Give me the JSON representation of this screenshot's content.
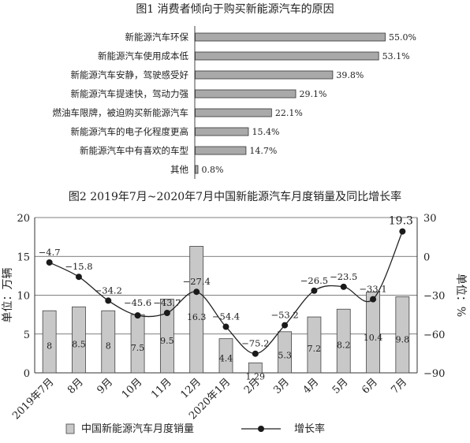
{
  "chart_data": [
    {
      "type": "bar",
      "orientation": "horizontal",
      "title": "图1 消费者倾向于购买新能源汽车的原因",
      "categories": [
        "新能源汽车环保",
        "新能源汽车使用成本低",
        "新能源汽车安静，驾驶感受好",
        "新能源汽车提速快，驾动力强",
        "燃油车限牌，被迫购买新能源汽车",
        "新能源汽车的电子化程度更高",
        "新能源汽车中有喜欢的车型",
        "其他"
      ],
      "values": [
        55.0,
        53.1,
        39.8,
        29.1,
        22.1,
        15.4,
        14.7,
        0.8
      ],
      "value_labels": [
        "55.0%",
        "53.1%",
        "39.8%",
        "29.1%",
        "22.1%",
        "15.4%",
        "14.7%",
        "0.8%"
      ],
      "xlim": [
        0,
        70
      ],
      "bar_color": "#a9a9a9"
    },
    {
      "type": "bar",
      "title": "图2 2019年7月~2020年7月中国新能源汽车月度销量及同比增长率",
      "categories": [
        "2019年7月",
        "8月",
        "9月",
        "10月",
        "11月",
        "12月",
        "2020年1月",
        "2月",
        "3月",
        "4月",
        "5月",
        "6月",
        "7月"
      ],
      "ylabel": "单位：万辆",
      "y2label": "单位：%",
      "ylim": [
        0,
        20
      ],
      "y2lim": [
        -90,
        30
      ],
      "yticks": [
        "0",
        "5",
        "10",
        "15",
        "20"
      ],
      "y2ticks": [
        "−90",
        "−60",
        "−30",
        "0",
        "30"
      ],
      "series": [
        {
          "name": "中国新能源汽车月度销量",
          "kind": "bar",
          "axis": "left",
          "values": [
            8,
            8.5,
            8,
            7.5,
            9.5,
            16.3,
            4.4,
            1.29,
            5.3,
            7.2,
            8.2,
            10.4,
            9.8
          ],
          "labels": [
            "8",
            "8.5",
            "8",
            "7.5",
            "9.5",
            "16.3",
            "4.4",
            "1.29",
            "5.3",
            "7.2",
            "8.2",
            "10.4",
            "9.8"
          ],
          "color": "#c8c8c8"
        },
        {
          "name": "增长率",
          "kind": "line",
          "axis": "right",
          "values": [
            -4.7,
            -15.8,
            -34.2,
            -45.6,
            -43.7,
            -27.4,
            -54.4,
            -75.2,
            -53.2,
            -26.5,
            -23.5,
            -33.1,
            19.3
          ],
          "labels": [
            "−4.7",
            "−15.8",
            "−34.2",
            "−45.6",
            "−43.7",
            "−27.4",
            "−54.4",
            "−75.2",
            "−53.2",
            "−26.5",
            "−23.5",
            "−33.1",
            "19.3"
          ],
          "color": "#222222"
        }
      ],
      "legend_position": "bottom",
      "grid": true
    }
  ]
}
